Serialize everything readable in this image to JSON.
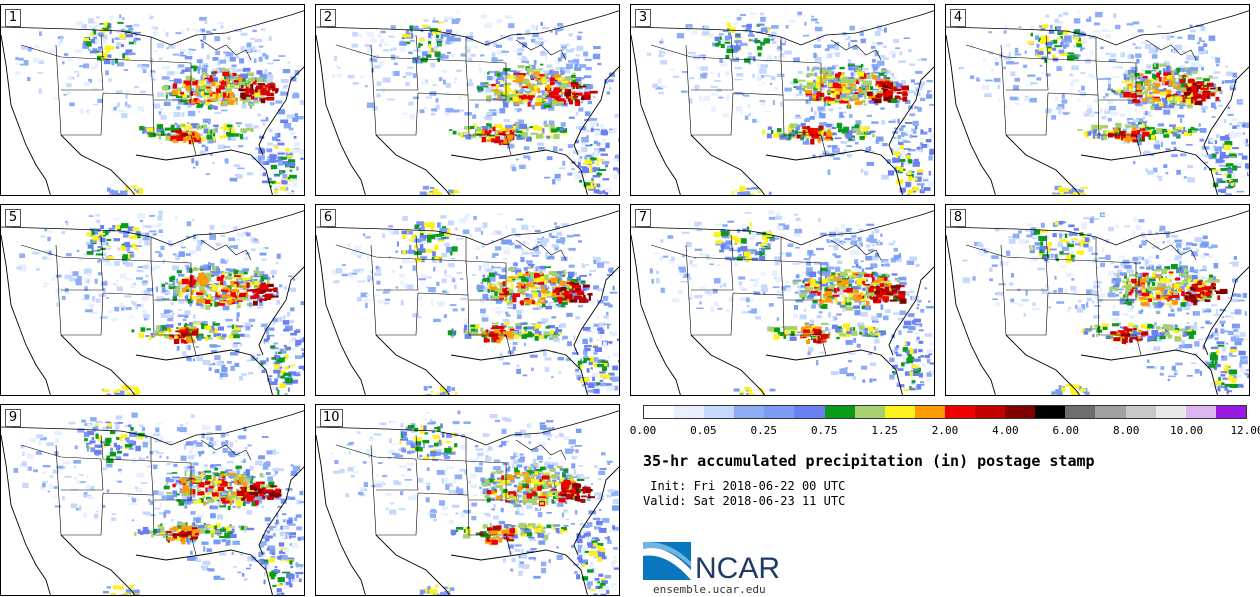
{
  "panels": [
    {
      "number": "1"
    },
    {
      "number": "2"
    },
    {
      "number": "3"
    },
    {
      "number": "4"
    },
    {
      "number": "5"
    },
    {
      "number": "6"
    },
    {
      "number": "7"
    },
    {
      "number": "8"
    },
    {
      "number": "9"
    },
    {
      "number": "10"
    }
  ],
  "colorbar": {
    "colors": [
      "#ffffff",
      "#e8f0ff",
      "#c6d8fe",
      "#8dadf6",
      "#7b9cf5",
      "#6b80f0",
      "#099c19",
      "#a7d06f",
      "#fdf21c",
      "#fd9b06",
      "#ee0000",
      "#c20000",
      "#7e0000",
      "#000000",
      "#6e6e6e",
      "#a0a0a0",
      "#c8c8c8",
      "#e8e8e8",
      "#dcb4f0",
      "#9b1adf"
    ],
    "tick_labels": [
      "0.00",
      "0.05",
      "0.25",
      "0.75",
      "1.25",
      "2.00",
      "4.00",
      "6.00",
      "8.00",
      "10.00",
      "12.00"
    ]
  },
  "title": "35-hr accumulated precipitation (in) postage stamp",
  "init_line": " Init: Fri 2018-06-22 00 UTC",
  "valid_line": "Valid: Sat 2018-06-23 11 UTC",
  "logo": {
    "text": "NCAR",
    "subtext": "ensemble.ucar.edu",
    "brand_color": "#1f3a66",
    "swoosh_color": "#0a76be"
  }
}
